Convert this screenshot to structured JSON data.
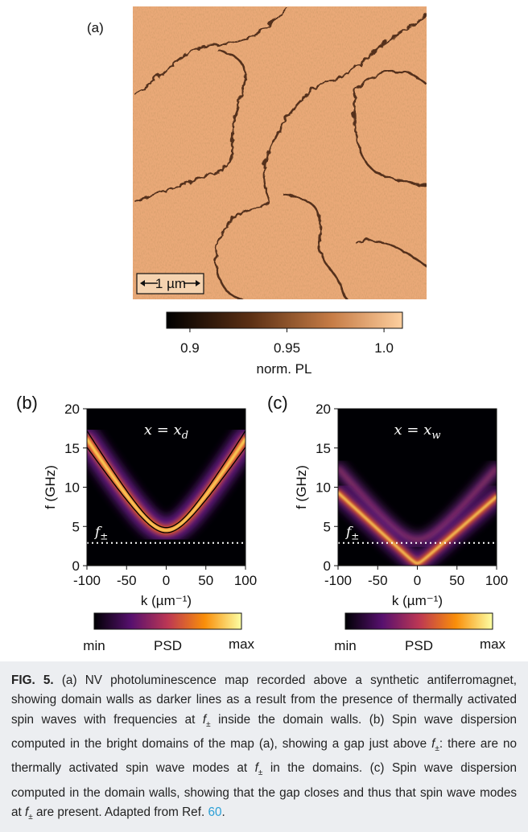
{
  "figure": {
    "panel_a": {
      "label": "(a)",
      "scale_bar": "1 µm",
      "colorbar": {
        "lim": [
          0.888,
          1.0095
        ],
        "ticks": [
          0.9,
          0.95,
          {
            "value": 1,
            "label": "1.0"
          }
        ],
        "label": "norm. PL"
      }
    },
    "panel_b": {
      "label": "(b)",
      "annotation": {
        "text": "x = x",
        "sub": "d"
      },
      "xlim": [
        -100,
        100
      ],
      "ylim": [
        0,
        20
      ],
      "xticks": [
        -100,
        -50,
        0,
        50,
        100
      ],
      "yticks": [
        0,
        5,
        10,
        15,
        20
      ],
      "xlabel": "k (µm⁻¹)",
      "ylabel": "f (GHz)",
      "level": {
        "name": "f",
        "sub": "±",
        "value": 2.9
      },
      "colorbar": {
        "min": "min",
        "label": "PSD",
        "max": "max"
      }
    },
    "panel_c": {
      "label": "(c)",
      "annotation": {
        "text": "x = x",
        "sub": "w"
      },
      "xlim": [
        -100,
        100
      ],
      "ylim": [
        0,
        20
      ],
      "xticks": [
        -100,
        -50,
        0,
        50,
        100
      ],
      "yticks": [
        0,
        5,
        10,
        15,
        20
      ],
      "xlabel": "k (µm⁻¹)",
      "ylabel": "f (GHz)",
      "level": {
        "name": "f",
        "sub": "±",
        "value": 2.9
      },
      "colorbar": {
        "min": "min",
        "label": "PSD",
        "max": "max"
      }
    }
  },
  "caption": {
    "label": "FIG. 5.",
    "parts": [
      " (a) NV photoluminescence map recorded above a synthetic antiferromagnet, showing domain walls as darker lines as a result from the presence of thermally activated spin waves with frequencies at ",
      {
        "italic": "f"
      },
      {
        "sub": "±"
      },
      " inside the domain walls. (b) Spin wave dispersion computed in the bright domains of the map (a), showing a gap just above ",
      {
        "italic": "f"
      },
      {
        "sub": "±"
      },
      ": there are no thermally activated spin wave modes at ",
      {
        "italic": "f"
      },
      {
        "sub": "±"
      },
      " in the domains. (c) Spin wave dispersion computed in the domain walls, showing that the gap closes and thus that spin wave modes at ",
      {
        "italic": "f"
      },
      {
        "sub": "±"
      },
      " are present. Adapted from Ref. ",
      {
        "link": "60"
      },
      "."
    ]
  }
}
